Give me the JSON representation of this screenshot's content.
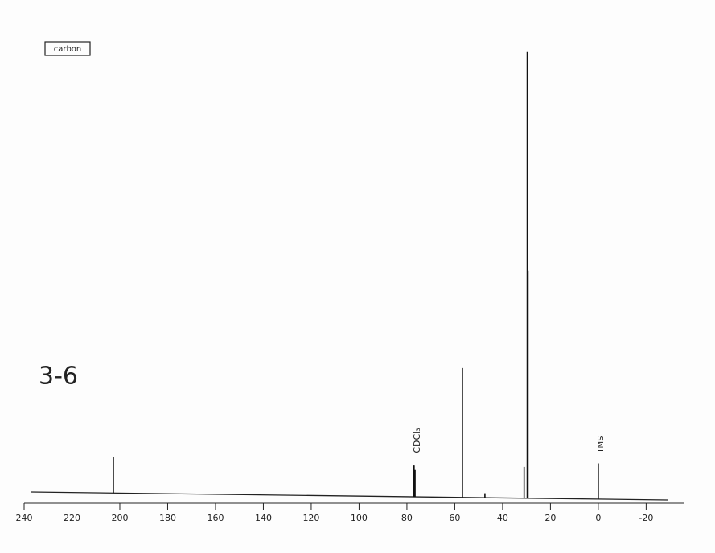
{
  "chart_data": {
    "type": "spectrum",
    "annotations": {
      "box": "carbon",
      "compound": "3-6",
      "solvent": "CDCl₃",
      "reference": "TMS"
    },
    "x": [
      202.7,
      77.3,
      77.0,
      76.6,
      56.8,
      47.4,
      31.0,
      29.7,
      29.4,
      0.0
    ],
    "values": [
      8,
      7,
      7,
      6,
      29,
      1,
      7,
      100,
      51,
      8
    ],
    "color": "#111111",
    "xlim": [
      240,
      -35
    ],
    "xticks": [
      240,
      220,
      200,
      180,
      160,
      140,
      120,
      100,
      80,
      60,
      40,
      20,
      0,
      -20
    ],
    "ylim": [
      0,
      100
    ]
  }
}
